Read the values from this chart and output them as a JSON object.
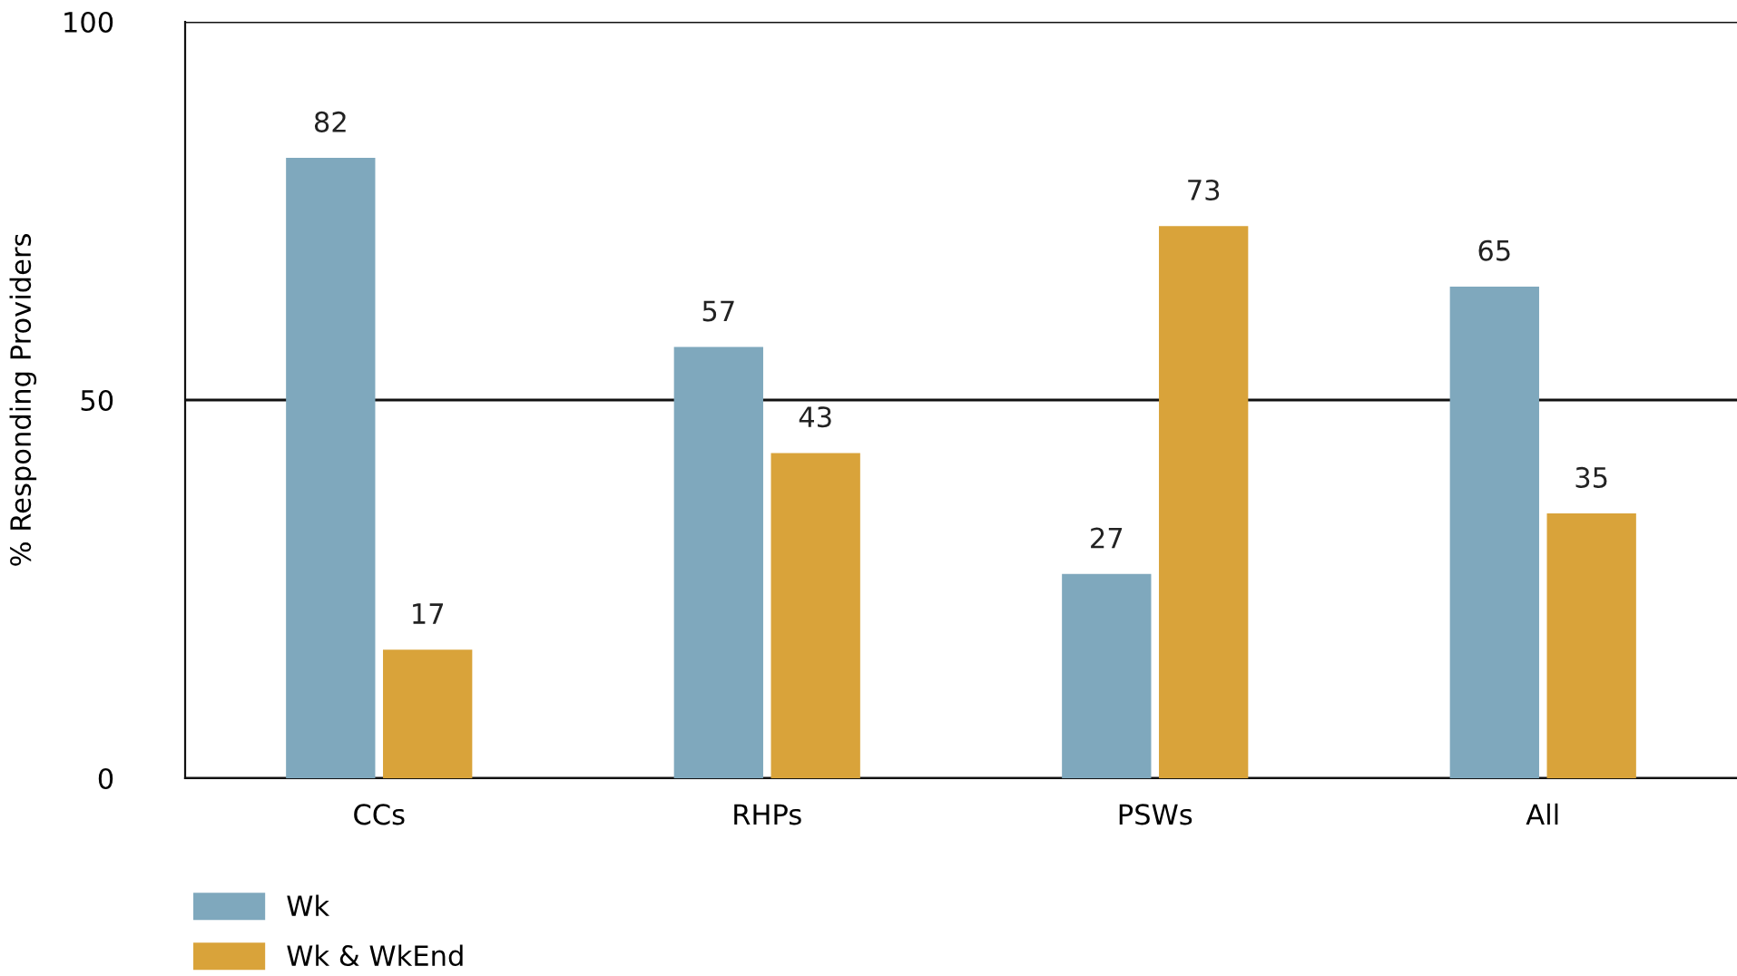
{
  "chart_data": {
    "type": "bar",
    "ylabel": "% Responding Providers",
    "categories": [
      "CCs",
      "RHPs",
      "PSWs",
      "All"
    ],
    "series": [
      {
        "name": "Wk",
        "color": "#7fa8bd",
        "values": [
          82,
          57,
          27,
          65
        ]
      },
      {
        "name": "Wk & WkEnd",
        "color": "#d9a33a",
        "values": [
          17,
          43,
          73,
          35
        ]
      }
    ],
    "ylim": [
      0,
      100
    ],
    "yticks": [
      0,
      50,
      100
    ],
    "grid": "y",
    "legend": "bottom left",
    "data_labels": true
  }
}
